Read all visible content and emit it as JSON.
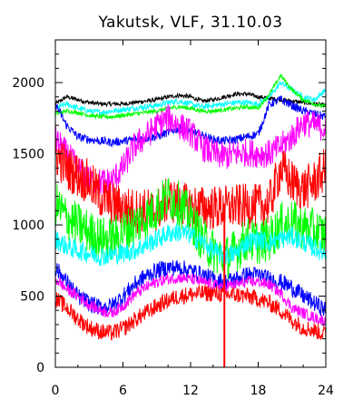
{
  "chart_data": {
    "type": "line",
    "title": "Yakutsk, VLF, 31.10.03",
    "xlabel": "",
    "ylabel": "",
    "xlim": [
      0,
      24
    ],
    "ylim": [
      0,
      2300
    ],
    "x_ticks": [
      0,
      6,
      12,
      18,
      24
    ],
    "x_tick_labels": [
      "0",
      "6",
      "12",
      "18",
      "24"
    ],
    "y_ticks": [
      0,
      500,
      1000,
      1500,
      2000
    ],
    "y_tick_labels": [
      "0",
      "500",
      "1000",
      "1500",
      "2000"
    ],
    "grid": false,
    "legend": "none",
    "x": [
      0,
      1,
      2,
      3,
      4,
      5,
      6,
      7,
      8,
      9,
      10,
      11,
      12,
      13,
      14,
      15,
      16,
      17,
      18,
      19,
      20,
      21,
      22,
      23,
      24
    ],
    "series": [
      {
        "color": "#000000",
        "noise": 15,
        "values": [
          1850,
          1900,
          1880,
          1860,
          1850,
          1850,
          1850,
          1860,
          1870,
          1880,
          1900,
          1910,
          1900,
          1870,
          1880,
          1900,
          1920,
          1920,
          1900,
          1890,
          1880,
          1870,
          1860,
          1850,
          1840
        ]
      },
      {
        "color": "#00ffff",
        "noise": 20,
        "values": [
          1820,
          1850,
          1820,
          1800,
          1790,
          1800,
          1810,
          1820,
          1830,
          1840,
          1860,
          1870,
          1850,
          1830,
          1840,
          1850,
          1860,
          1860,
          1850,
          1900,
          2000,
          1950,
          1900,
          1880,
          1950
        ]
      },
      {
        "color": "#00ff00",
        "noise": 15,
        "values": [
          1780,
          1800,
          1790,
          1770,
          1760,
          1760,
          1770,
          1780,
          1790,
          1800,
          1820,
          1830,
          1820,
          1800,
          1800,
          1810,
          1820,
          1830,
          1820,
          1920,
          2050,
          1950,
          1880,
          1850,
          1830
        ]
      },
      {
        "color": "#0000ff",
        "noise": 30,
        "values": [
          1850,
          1700,
          1620,
          1600,
          1590,
          1580,
          1590,
          1600,
          1610,
          1620,
          1650,
          1680,
          1660,
          1630,
          1600,
          1590,
          1600,
          1620,
          1640,
          1850,
          1880,
          1840,
          1800,
          1780,
          1760
        ]
      },
      {
        "color": "#ff00ff",
        "noise": 100,
        "values": [
          1600,
          1500,
          1400,
          1320,
          1300,
          1310,
          1400,
          1550,
          1620,
          1700,
          1750,
          1700,
          1650,
          1550,
          1500,
          1480,
          1500,
          1510,
          1500,
          1500,
          1550,
          1620,
          1720,
          1700,
          1680
        ]
      },
      {
        "color": "#ff0000",
        "noise": 160,
        "values": [
          1500,
          1400,
          1350,
          1300,
          1200,
          1150,
          1120,
          1100,
          1100,
          1100,
          1180,
          1150,
          1130,
          1120,
          1120,
          1120,
          1130,
          1130,
          1130,
          1150,
          1400,
          1300,
          1250,
          1300,
          1400
        ]
      },
      {
        "color": "#00ff00",
        "noise": 160,
        "values": [
          1150,
          1050,
          1000,
          950,
          900,
          900,
          950,
          1000,
          1050,
          1120,
          1200,
          1150,
          1050,
          900,
          820,
          760,
          820,
          900,
          880,
          900,
          1000,
          1020,
          980,
          960,
          930
        ]
      },
      {
        "color": "#00ffff",
        "noise": 70,
        "values": [
          900,
          850,
          820,
          800,
          780,
          790,
          800,
          820,
          860,
          900,
          940,
          950,
          930,
          880,
          820,
          780,
          800,
          880,
          900,
          880,
          900,
          920,
          880,
          840,
          800
        ]
      },
      {
        "color": "#0000ff",
        "noise": 60,
        "values": [
          700,
          600,
          500,
          450,
          420,
          430,
          500,
          580,
          640,
          680,
          700,
          700,
          680,
          650,
          620,
          600,
          620,
          650,
          650,
          620,
          600,
          560,
          500,
          450,
          400
        ]
      },
      {
        "color": "#ff00ff",
        "noise": 40,
        "values": [
          620,
          550,
          500,
          440,
          400,
          380,
          430,
          510,
          560,
          600,
          620,
          630,
          620,
          600,
          580,
          570,
          580,
          600,
          600,
          580,
          520,
          420,
          380,
          350,
          320
        ]
      },
      {
        "color": "#ff0000",
        "noise": 60,
        "values": [
          480,
          420,
          340,
          280,
          250,
          240,
          270,
          330,
          380,
          430,
          470,
          500,
          510,
          520,
          520,
          510,
          510,
          500,
          480,
          450,
          400,
          330,
          280,
          260,
          230
        ]
      }
    ],
    "vertical_marker": {
      "x": 15,
      "color": "#ff0000"
    }
  }
}
